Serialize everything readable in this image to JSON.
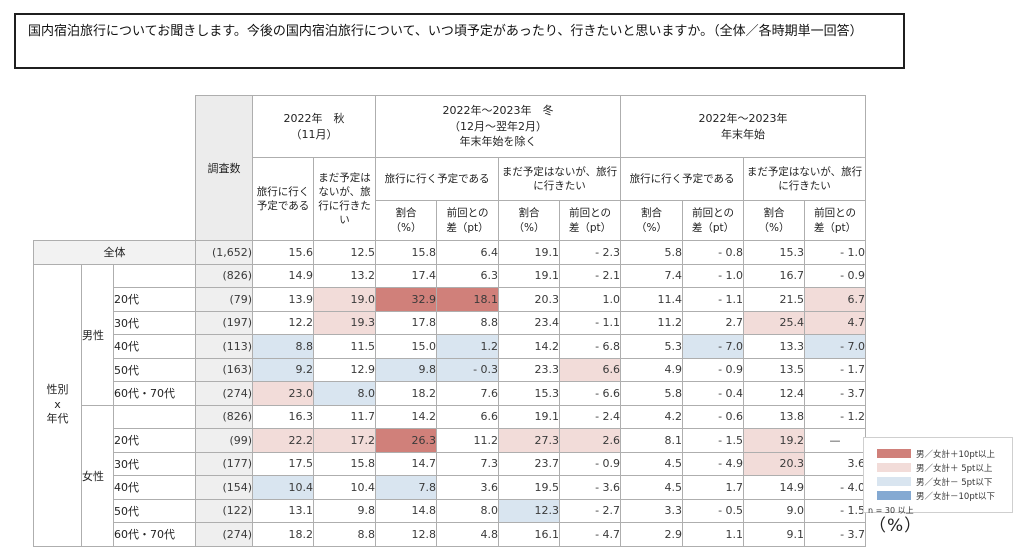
{
  "title": "国内宿泊旅行についてお聞きします。今後の国内宿泊旅行について、いつ頃予定があったり、行きたいと思いますか。（全体／各時期単一回答）",
  "unit_label": "（%）",
  "colors": {
    "p10": "#d0807a",
    "p5": "#f2dcd9",
    "m5": "#d9e5f0",
    "m10": "#84a9d2"
  },
  "legend": {
    "items": [
      {
        "key": "p10",
        "label": "男／女計＋10pt以上"
      },
      {
        "key": "p5",
        "label": "男／女計＋ 5pt以上"
      },
      {
        "key": "m5",
        "label": "男／女計－ 5pt以下"
      },
      {
        "key": "m10",
        "label": "男／女計－10pt以下"
      }
    ],
    "note": "n = 30 以上"
  },
  "table": {
    "header": {
      "survey_n": "調査数",
      "row_group": "性別\nx\n年代",
      "autumn": {
        "title": "2022年　秋\n（11月）",
        "col_plan": "旅行に行く予定である",
        "col_want": "まだ予定はないが、旅行に行きたい"
      },
      "winter": {
        "title": "2022年～2023年　冬\n（12月～翌年2月）\n年末年始を除く",
        "sub_plan": "旅行に行く予定である",
        "sub_want": "まだ予定はないが、旅行に行きたい"
      },
      "yearend": {
        "title": "2022年～2023年\n年末年始",
        "sub_plan": "旅行に行く予定である",
        "sub_want": "まだ予定はないが、旅行に行きたい"
      },
      "ratio": "割合\n（%）",
      "diff": "前回との\n差（pt）"
    },
    "rows": [
      {
        "label": "全体",
        "kind": "total",
        "n": "(1,652)",
        "values": [
          "15.6",
          "12.5",
          "15.8",
          "6.4",
          "19.1",
          "- 2.3",
          "5.8",
          "- 0.8",
          "15.3",
          "- 1.0"
        ],
        "hl": [
          null,
          null,
          null,
          null,
          null,
          null,
          null,
          null,
          null,
          null
        ]
      },
      {
        "label": "男性",
        "kind": "gender",
        "n": "(826)",
        "values": [
          "14.9",
          "13.2",
          "17.4",
          "6.3",
          "19.1",
          "- 2.1",
          "7.4",
          "- 1.0",
          "16.7",
          "- 0.9"
        ],
        "hl": [
          null,
          null,
          null,
          null,
          null,
          null,
          null,
          null,
          null,
          null
        ]
      },
      {
        "label": "20代",
        "kind": "age",
        "n": "(79)",
        "values": [
          "13.9",
          "19.0",
          "32.9",
          "18.1",
          "20.3",
          "1.0",
          "11.4",
          "- 1.1",
          "21.5",
          "6.7"
        ],
        "hl": [
          null,
          "p5",
          "p10",
          "p10",
          null,
          null,
          null,
          null,
          null,
          "p5"
        ]
      },
      {
        "label": "30代",
        "kind": "age",
        "n": "(197)",
        "values": [
          "12.2",
          "19.3",
          "17.8",
          "8.8",
          "23.4",
          "- 1.1",
          "11.2",
          "2.7",
          "25.4",
          "4.7"
        ],
        "hl": [
          null,
          "p5",
          null,
          null,
          null,
          null,
          null,
          null,
          "p5",
          "p5"
        ]
      },
      {
        "label": "40代",
        "kind": "age",
        "n": "(113)",
        "values": [
          "8.8",
          "11.5",
          "15.0",
          "1.2",
          "14.2",
          "- 6.8",
          "5.3",
          "- 7.0",
          "13.3",
          "- 7.0"
        ],
        "hl": [
          "m5",
          null,
          null,
          "m5",
          null,
          null,
          null,
          "m5",
          null,
          "m5"
        ]
      },
      {
        "label": "50代",
        "kind": "age",
        "n": "(163)",
        "values": [
          "9.2",
          "12.9",
          "9.8",
          "- 0.3",
          "23.3",
          "6.6",
          "4.9",
          "- 0.9",
          "13.5",
          "- 1.7"
        ],
        "hl": [
          "m5",
          null,
          "m5",
          "m5",
          null,
          "p5",
          null,
          null,
          null,
          null
        ]
      },
      {
        "label": "60代・70代",
        "kind": "age",
        "n": "(274)",
        "values": [
          "23.0",
          "8.0",
          "18.2",
          "7.6",
          "15.3",
          "- 6.6",
          "5.8",
          "- 0.4",
          "12.4",
          "- 3.7"
        ],
        "hl": [
          "p5",
          "m5",
          null,
          null,
          null,
          null,
          null,
          null,
          null,
          null
        ]
      },
      {
        "label": "女性",
        "kind": "gender",
        "n": "(826)",
        "values": [
          "16.3",
          "11.7",
          "14.2",
          "6.6",
          "19.1",
          "- 2.4",
          "4.2",
          "- 0.6",
          "13.8",
          "- 1.2"
        ],
        "hl": [
          null,
          null,
          null,
          null,
          null,
          null,
          null,
          null,
          null,
          null
        ]
      },
      {
        "label": "20代",
        "kind": "age",
        "n": "(99)",
        "values": [
          "22.2",
          "17.2",
          "26.3",
          "11.2",
          "27.3",
          "2.6",
          "8.1",
          "- 1.5",
          "19.2",
          "—"
        ],
        "hl": [
          "p5",
          "p5",
          "p10",
          null,
          "p5",
          "p5",
          null,
          null,
          "p5",
          null
        ]
      },
      {
        "label": "30代",
        "kind": "age",
        "n": "(177)",
        "values": [
          "17.5",
          "15.8",
          "14.7",
          "7.3",
          "23.7",
          "- 0.9",
          "4.5",
          "- 4.9",
          "20.3",
          "3.6"
        ],
        "hl": [
          null,
          null,
          null,
          null,
          null,
          null,
          null,
          null,
          "p5",
          null
        ]
      },
      {
        "label": "40代",
        "kind": "age",
        "n": "(154)",
        "values": [
          "10.4",
          "10.4",
          "7.8",
          "3.6",
          "19.5",
          "- 3.6",
          "4.5",
          "1.7",
          "14.9",
          "- 4.0"
        ],
        "hl": [
          "m5",
          null,
          "m5",
          null,
          null,
          null,
          null,
          null,
          null,
          null
        ]
      },
      {
        "label": "50代",
        "kind": "age",
        "n": "(122)",
        "values": [
          "13.1",
          "9.8",
          "14.8",
          "8.0",
          "12.3",
          "- 2.7",
          "3.3",
          "- 0.5",
          "9.0",
          "- 1.5"
        ],
        "hl": [
          null,
          null,
          null,
          null,
          "m5",
          null,
          null,
          null,
          null,
          null
        ]
      },
      {
        "label": "60代・70代",
        "kind": "age",
        "n": "(274)",
        "values": [
          "18.2",
          "8.8",
          "12.8",
          "4.8",
          "16.1",
          "- 4.7",
          "2.9",
          "1.1",
          "9.1",
          "- 3.7"
        ],
        "hl": [
          null,
          null,
          null,
          null,
          null,
          null,
          null,
          null,
          null,
          null
        ]
      }
    ]
  },
  "chart_data": {
    "type": "table",
    "unit": "%",
    "columns": [
      "調査数",
      "2022年秋(11月) 旅行に行く予定である",
      "2022年秋(11月) まだ予定はないが旅行に行きたい",
      "2022-23年冬(年末年始除く) 旅行に行く予定 割合(%)",
      "2022-23年冬(年末年始除く) 旅行に行く予定 前回との差(pt)",
      "2022-23年冬(年末年始除く) まだ予定はないが行きたい 割合(%)",
      "2022-23年冬(年末年始除く) まだ予定はないが行きたい 前回との差(pt)",
      "2022-23年年末年始 旅行に行く予定 割合(%)",
      "2022-23年年末年始 旅行に行く予定 前回との差(pt)",
      "2022-23年年末年始 まだ予定はないが行きたい 割合(%)",
      "2022-23年年末年始 まだ予定はないが行きたい 前回との差(pt)"
    ],
    "rows": [
      {
        "group": "全体",
        "n": 1652,
        "values": [
          15.6,
          12.5,
          15.8,
          6.4,
          19.1,
          -2.3,
          5.8,
          -0.8,
          15.3,
          -1.0
        ]
      },
      {
        "group": "男性",
        "n": 826,
        "values": [
          14.9,
          13.2,
          17.4,
          6.3,
          19.1,
          -2.1,
          7.4,
          -1.0,
          16.7,
          -0.9
        ]
      },
      {
        "group": "男性20代",
        "n": 79,
        "values": [
          13.9,
          19.0,
          32.9,
          18.1,
          20.3,
          1.0,
          11.4,
          -1.1,
          21.5,
          6.7
        ]
      },
      {
        "group": "男性30代",
        "n": 197,
        "values": [
          12.2,
          19.3,
          17.8,
          8.8,
          23.4,
          -1.1,
          11.2,
          2.7,
          25.4,
          4.7
        ]
      },
      {
        "group": "男性40代",
        "n": 113,
        "values": [
          8.8,
          11.5,
          15.0,
          1.2,
          14.2,
          -6.8,
          5.3,
          -7.0,
          13.3,
          -7.0
        ]
      },
      {
        "group": "男性50代",
        "n": 163,
        "values": [
          9.2,
          12.9,
          9.8,
          -0.3,
          23.3,
          6.6,
          4.9,
          -0.9,
          13.5,
          -1.7
        ]
      },
      {
        "group": "男性60代・70代",
        "n": 274,
        "values": [
          23.0,
          8.0,
          18.2,
          7.6,
          15.3,
          -6.6,
          5.8,
          -0.4,
          12.4,
          -3.7
        ]
      },
      {
        "group": "女性",
        "n": 826,
        "values": [
          16.3,
          11.7,
          14.2,
          6.6,
          19.1,
          -2.4,
          4.2,
          -0.6,
          13.8,
          -1.2
        ]
      },
      {
        "group": "女性20代",
        "n": 99,
        "values": [
          22.2,
          17.2,
          26.3,
          11.2,
          27.3,
          2.6,
          8.1,
          -1.5,
          19.2,
          null
        ]
      },
      {
        "group": "女性30代",
        "n": 177,
        "values": [
          17.5,
          15.8,
          14.7,
          7.3,
          23.7,
          -0.9,
          4.5,
          -4.9,
          20.3,
          3.6
        ]
      },
      {
        "group": "女性40代",
        "n": 154,
        "values": [
          10.4,
          10.4,
          7.8,
          3.6,
          19.5,
          -3.6,
          4.5,
          1.7,
          14.9,
          -4.0
        ]
      },
      {
        "group": "女性50代",
        "n": 122,
        "values": [
          13.1,
          9.8,
          14.8,
          8.0,
          12.3,
          -2.7,
          3.3,
          -0.5,
          9.0,
          -1.5
        ]
      },
      {
        "group": "女性60代・70代",
        "n": 274,
        "values": [
          18.2,
          8.8,
          12.8,
          4.8,
          16.1,
          -4.7,
          2.9,
          1.1,
          9.1,
          -3.7
        ]
      }
    ]
  }
}
